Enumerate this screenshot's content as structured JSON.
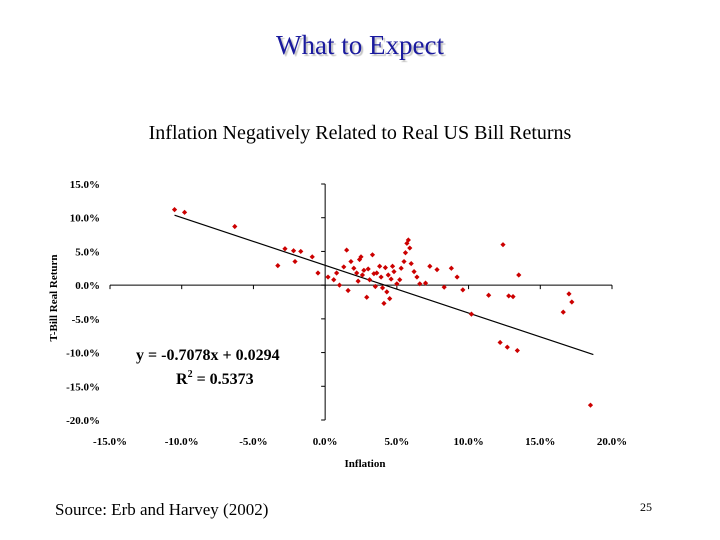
{
  "slide": {
    "title": "What to Expect",
    "source": "Source: Erb and Harvey (2002)",
    "page_number": "25"
  },
  "chart_data": {
    "type": "scatter",
    "title": "Inflation Negatively Related to Real US Bill Returns",
    "xlabel": "Inflation",
    "ylabel": "T-Bill Real Return",
    "xlim": [
      -0.15,
      0.2
    ],
    "ylim": [
      -0.2,
      0.15
    ],
    "x_ticks": [
      {
        "value": -0.15,
        "label": "-15.0%"
      },
      {
        "value": -0.1,
        "label": "-10.0%"
      },
      {
        "value": -0.05,
        "label": "-5.0%"
      },
      {
        "value": 0.0,
        "label": "0.0%"
      },
      {
        "value": 0.05,
        "label": "5.0%"
      },
      {
        "value": 0.1,
        "label": "10.0%"
      },
      {
        "value": 0.15,
        "label": "15.0%"
      },
      {
        "value": 0.2,
        "label": "20.0%"
      }
    ],
    "y_ticks": [
      {
        "value": 0.15,
        "label": "15.0%"
      },
      {
        "value": 0.1,
        "label": "10.0%"
      },
      {
        "value": 0.05,
        "label": "5.0%"
      },
      {
        "value": 0.0,
        "label": "0.0%"
      },
      {
        "value": -0.05,
        "label": "-5.0%"
      },
      {
        "value": -0.1,
        "label": "-10.0%"
      },
      {
        "value": -0.15,
        "label": "-15.0%"
      },
      {
        "value": -0.2,
        "label": "-20.0%"
      }
    ],
    "grid": false,
    "marker_color": "#cc0000",
    "trendline": {
      "slope": -0.7078,
      "intercept": 0.0294,
      "x_range": [
        -0.105,
        0.187
      ],
      "equation": "y = -0.7078x + 0.0294",
      "r2_prefix": "R",
      "r2_exp": "2",
      "r2_suffix": " = 0.5373"
    },
    "points": [
      {
        "x": -0.105,
        "y": 0.112
      },
      {
        "x": -0.098,
        "y": 0.108
      },
      {
        "x": -0.063,
        "y": 0.087
      },
      {
        "x": -0.028,
        "y": 0.054
      },
      {
        "x": -0.022,
        "y": 0.051
      },
      {
        "x": -0.017,
        "y": 0.05
      },
      {
        "x": -0.033,
        "y": 0.029
      },
      {
        "x": -0.021,
        "y": 0.035
      },
      {
        "x": -0.009,
        "y": 0.042
      },
      {
        "x": -0.005,
        "y": 0.018
      },
      {
        "x": 0.002,
        "y": 0.012
      },
      {
        "x": 0.006,
        "y": 0.008
      },
      {
        "x": 0.008,
        "y": 0.018
      },
      {
        "x": 0.01,
        "y": 0.0
      },
      {
        "x": 0.013,
        "y": 0.027
      },
      {
        "x": 0.015,
        "y": 0.052
      },
      {
        "x": 0.016,
        "y": -0.008
      },
      {
        "x": 0.018,
        "y": 0.035
      },
      {
        "x": 0.02,
        "y": 0.025
      },
      {
        "x": 0.022,
        "y": 0.018
      },
      {
        "x": 0.023,
        "y": 0.006
      },
      {
        "x": 0.024,
        "y": 0.038
      },
      {
        "x": 0.025,
        "y": 0.042
      },
      {
        "x": 0.026,
        "y": 0.015
      },
      {
        "x": 0.027,
        "y": 0.022
      },
      {
        "x": 0.029,
        "y": -0.018
      },
      {
        "x": 0.03,
        "y": 0.024
      },
      {
        "x": 0.031,
        "y": 0.008
      },
      {
        "x": 0.033,
        "y": 0.045
      },
      {
        "x": 0.034,
        "y": 0.017
      },
      {
        "x": 0.035,
        "y": -0.002
      },
      {
        "x": 0.036,
        "y": 0.018
      },
      {
        "x": 0.038,
        "y": 0.028
      },
      {
        "x": 0.039,
        "y": 0.012
      },
      {
        "x": 0.04,
        "y": -0.004
      },
      {
        "x": 0.041,
        "y": -0.027
      },
      {
        "x": 0.042,
        "y": 0.026
      },
      {
        "x": 0.043,
        "y": -0.01
      },
      {
        "x": 0.044,
        "y": 0.015
      },
      {
        "x": 0.045,
        "y": -0.02
      },
      {
        "x": 0.046,
        "y": 0.009
      },
      {
        "x": 0.047,
        "y": 0.028
      },
      {
        "x": 0.048,
        "y": 0.02
      },
      {
        "x": 0.05,
        "y": 0.002
      },
      {
        "x": 0.052,
        "y": 0.008
      },
      {
        "x": 0.053,
        "y": 0.025
      },
      {
        "x": 0.055,
        "y": 0.035
      },
      {
        "x": 0.056,
        "y": 0.048
      },
      {
        "x": 0.057,
        "y": 0.062
      },
      {
        "x": 0.058,
        "y": 0.067
      },
      {
        "x": 0.059,
        "y": 0.055
      },
      {
        "x": 0.06,
        "y": 0.032
      },
      {
        "x": 0.062,
        "y": 0.02
      },
      {
        "x": 0.064,
        "y": 0.012
      },
      {
        "x": 0.066,
        "y": 0.002
      },
      {
        "x": 0.07,
        "y": 0.003
      },
      {
        "x": 0.073,
        "y": 0.028
      },
      {
        "x": 0.078,
        "y": 0.023
      },
      {
        "x": 0.083,
        "y": -0.003
      },
      {
        "x": 0.088,
        "y": 0.025
      },
      {
        "x": 0.092,
        "y": 0.012
      },
      {
        "x": 0.096,
        "y": -0.007
      },
      {
        "x": 0.102,
        "y": -0.043
      },
      {
        "x": 0.114,
        "y": -0.015
      },
      {
        "x": 0.135,
        "y": 0.015
      },
      {
        "x": 0.124,
        "y": 0.06
      },
      {
        "x": 0.128,
        "y": -0.016
      },
      {
        "x": 0.131,
        "y": -0.017
      },
      {
        "x": 0.122,
        "y": -0.085
      },
      {
        "x": 0.127,
        "y": -0.092
      },
      {
        "x": 0.134,
        "y": -0.097
      },
      {
        "x": 0.166,
        "y": -0.04
      },
      {
        "x": 0.17,
        "y": -0.013
      },
      {
        "x": 0.172,
        "y": -0.025
      },
      {
        "x": 0.185,
        "y": -0.178
      }
    ]
  }
}
